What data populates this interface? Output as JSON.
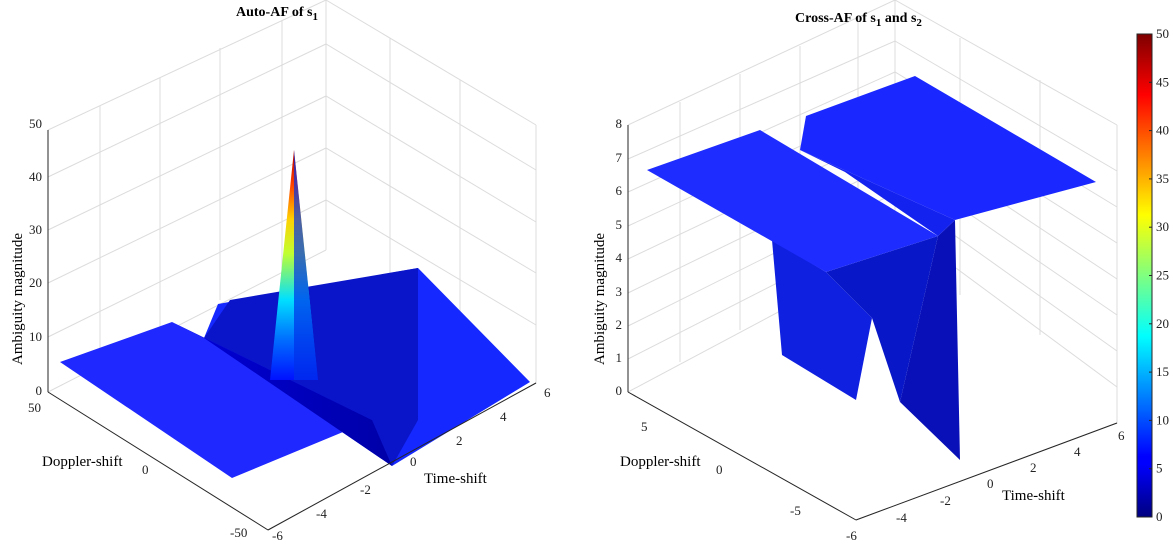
{
  "chart_data": [
    {
      "type": "surface",
      "title": "Auto-AF of s",
      "title_subscript": "1",
      "xlabel": "Time-shift",
      "ylabel": "Doppler-shift",
      "zlabel": "Ambiguity magnitude",
      "xlim": [
        -6,
        6
      ],
      "ylim": [
        -50,
        50
      ],
      "zlim": [
        0,
        50
      ],
      "xticks": [
        "-6",
        "-4",
        "-2",
        "0",
        "2",
        "4",
        "6"
      ],
      "yticks": [
        "-50",
        "0",
        "50"
      ],
      "zticks": [
        "0",
        "10",
        "20",
        "30",
        "40",
        "50"
      ],
      "grid": true,
      "surface": {
        "plateau_level": 6,
        "trough_level": 0,
        "trough_time_range": [
          -1,
          1
        ],
        "peak": {
          "time": 0,
          "doppler": 0,
          "value": 45
        }
      }
    },
    {
      "type": "surface",
      "title": "Cross-AF of s",
      "title_subscript_1": "1",
      "title_mid": " and s",
      "title_subscript_2": "2",
      "xlabel": "Time-shift",
      "ylabel": "Doppler-shift",
      "zlabel": "Ambiguity magnitude",
      "xlim": [
        -6,
        6
      ],
      "ylim": [
        -8,
        8
      ],
      "zlim": [
        0,
        8
      ],
      "xticks": [
        "-6",
        "-4",
        "-2",
        "0",
        "2",
        "4",
        "6"
      ],
      "yticks": [
        "-5",
        "0",
        "5"
      ],
      "zticks": [
        "0",
        "1",
        "2",
        "3",
        "4",
        "5",
        "6",
        "7",
        "8"
      ],
      "grid": true,
      "surface": {
        "plateau_level": 6,
        "trough_level": 0,
        "trough_time_range": [
          -1,
          1
        ],
        "trough_doppler_range": [
          -5,
          0
        ]
      }
    }
  ],
  "colorbar": {
    "colormap": "jet",
    "ticks": [
      "0",
      "5",
      "10",
      "15",
      "20",
      "25",
      "30",
      "35",
      "40",
      "45",
      "50"
    ],
    "range": [
      0,
      50
    ]
  }
}
